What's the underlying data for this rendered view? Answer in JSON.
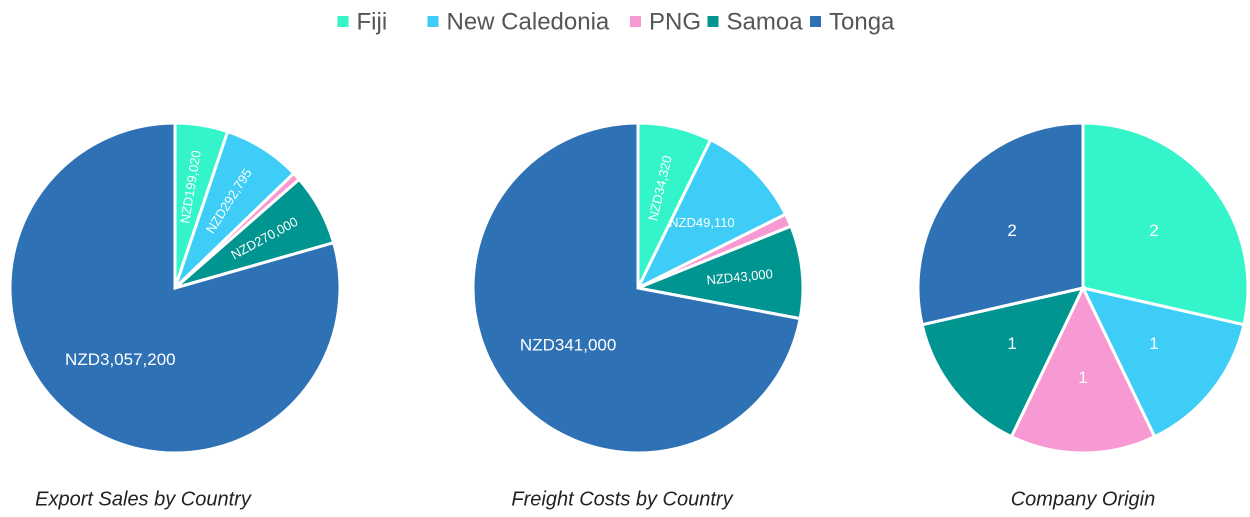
{
  "chart_data": [
    {
      "type": "pie",
      "title": "Export Sales by Country",
      "categories": [
        "Fiji",
        "New Caledonia",
        "PNG",
        "Samoa",
        "Tonga"
      ],
      "values": [
        199020,
        292795,
        30000,
        270000,
        3057200
      ],
      "value_labels": [
        "NZD199,020",
        "NZD292,795",
        null,
        "NZD270,000",
        "NZD3,057,200"
      ],
      "colors": [
        "#33f5c9",
        "#3dcdf7",
        "#f79ad3",
        "#009591",
        "#2e72b5"
      ]
    },
    {
      "type": "pie",
      "title": "Freight Costs by Country",
      "categories": [
        "Fiji",
        "New Caledonia",
        "PNG",
        "Samoa",
        "Tonga"
      ],
      "values": [
        34320,
        49110,
        6000,
        43000,
        341000
      ],
      "value_labels": [
        "NZD34,320",
        "NZD49,110",
        null,
        "NZD43,000",
        "NZD341,000"
      ],
      "colors": [
        "#33f5c9",
        "#3dcdf7",
        "#f79ad3",
        "#009591",
        "#2e72b5"
      ]
    },
    {
      "type": "pie",
      "title": "Company Origin",
      "categories": [
        "Fiji",
        "New Caledonia",
        "PNG",
        "Samoa",
        "Tonga"
      ],
      "values": [
        2,
        1,
        1,
        1,
        2
      ],
      "colors": [
        "#33f5c9",
        "#3dcdf7",
        "#f79ad3",
        "#009591",
        "#2e72b5"
      ]
    }
  ]
}
